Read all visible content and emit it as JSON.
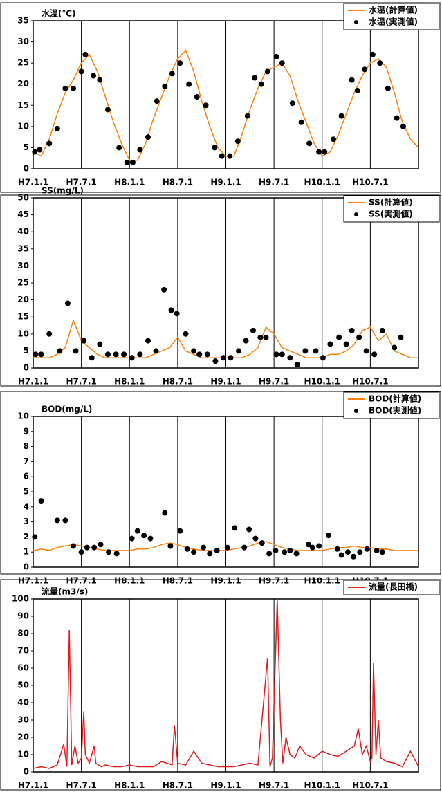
{
  "chart_data": [
    {
      "type": "line",
      "title": "水温(℃)",
      "xlim": [
        0,
        48
      ],
      "ylim": [
        0,
        35
      ],
      "yticks": [
        0,
        5,
        10,
        15,
        20,
        25,
        30,
        35
      ],
      "xticks": [
        {
          "value": 0,
          "label": "H7.1.1"
        },
        {
          "value": 6,
          "label": "H7.7.1"
        },
        {
          "value": 12,
          "label": "H8.1.1"
        },
        {
          "value": 18,
          "label": "H8.7.1"
        },
        {
          "value": 24,
          "label": "H9.1.1"
        },
        {
          "value": 30,
          "label": "H9.7.1"
        },
        {
          "value": 36,
          "label": "H10.1.1"
        },
        {
          "value": 42,
          "label": "H10.7.1"
        }
      ],
      "series": [
        {
          "name": "水温(計算値)",
          "color": "#ff7f0e",
          "style": "line",
          "x": [
            0,
            1,
            2,
            3,
            4,
            5,
            6,
            7,
            8,
            9,
            10,
            11,
            12,
            13,
            14,
            15,
            16,
            17,
            18,
            19,
            20,
            21,
            22,
            23,
            24,
            25,
            26,
            27,
            28,
            29,
            30,
            31,
            32,
            33,
            34,
            35,
            36,
            37,
            38,
            39,
            40,
            41,
            42,
            43,
            44,
            45,
            46,
            47,
            48
          ],
          "values": [
            4,
            3,
            7,
            13,
            18,
            21,
            25,
            27,
            23,
            17,
            11,
            6,
            2,
            2,
            6,
            12,
            17,
            22,
            26,
            28,
            23,
            16,
            10,
            5,
            3,
            3,
            8,
            14,
            19,
            23,
            24,
            25,
            22,
            16,
            11,
            6,
            3,
            4,
            8,
            13,
            18,
            22,
            25,
            26,
            24,
            18,
            11,
            7,
            5
          ]
        },
        {
          "name": "水温(実測値)",
          "color": "#000000",
          "style": "dots",
          "x": [
            0.2,
            0.8,
            2,
            3,
            4,
            5,
            6,
            6.5,
            7.5,
            8.3,
            9.3,
            10.7,
            11.7,
            12.4,
            13.3,
            14.3,
            15.4,
            16.4,
            17.3,
            18.3,
            19.4,
            20.4,
            21.5,
            22.6,
            23.5,
            24.5,
            25.5,
            26.7,
            27.6,
            28.4,
            29.2,
            30.3,
            31,
            32.3,
            33.4,
            34.4,
            35.6,
            36.3,
            37.4,
            38.4,
            39.7,
            40.4,
            41.3,
            42.3,
            43.2,
            44.2,
            45.3,
            46.1
          ],
          "values": [
            4,
            4.5,
            6,
            9.5,
            19,
            19,
            23,
            27,
            22,
            21,
            14,
            5,
            1.5,
            1.5,
            4.5,
            7.5,
            16,
            19.5,
            22.5,
            25,
            20,
            17,
            15,
            5,
            3,
            3,
            6.5,
            12.5,
            21.5,
            20,
            23,
            26.5,
            25,
            15.5,
            11,
            6,
            4,
            4,
            7,
            12.5,
            21,
            18.5,
            23.5,
            27,
            25,
            19,
            12,
            10
          ]
        }
      ]
    },
    {
      "type": "line",
      "title": "SS(mg/L)",
      "xlim": [
        0,
        48
      ],
      "ylim": [
        0,
        50
      ],
      "yticks": [
        0,
        5,
        10,
        15,
        20,
        25,
        30,
        35,
        40,
        45,
        50
      ],
      "xticks": [
        {
          "value": 0,
          "label": "H7.1.1"
        },
        {
          "value": 6,
          "label": "H7.7.1"
        },
        {
          "value": 12,
          "label": "H8.1.1"
        },
        {
          "value": 18,
          "label": "H8.7.1"
        },
        {
          "value": 24,
          "label": "H9.1.1"
        },
        {
          "value": 30,
          "label": "H9.7.1"
        },
        {
          "value": 36,
          "label": "H10.1.1"
        },
        {
          "value": 42,
          "label": "H10.7.1"
        }
      ],
      "series": [
        {
          "name": "SS(計算値)",
          "color": "#ff7f0e",
          "style": "line",
          "x": [
            0,
            1,
            2,
            3,
            4,
            5,
            6,
            7,
            8,
            9,
            10,
            11,
            12,
            13,
            14,
            15,
            16,
            17,
            18,
            19,
            20,
            21,
            22,
            23,
            24,
            25,
            26,
            27,
            28,
            29,
            30,
            31,
            32,
            33,
            34,
            35,
            36,
            37,
            38,
            39,
            40,
            41,
            42,
            43,
            44,
            45,
            46,
            47,
            48
          ],
          "values": [
            3,
            3,
            3,
            4,
            6,
            14,
            8,
            6,
            4,
            3,
            3,
            3,
            3,
            3,
            3,
            4,
            5,
            6,
            9,
            5,
            4,
            3,
            3,
            3,
            3,
            3,
            3,
            4,
            6,
            12,
            10,
            6,
            5,
            4,
            3,
            3,
            3,
            4,
            4,
            5,
            7,
            11,
            12,
            8,
            10,
            5,
            4,
            3,
            3
          ]
        },
        {
          "name": "SS(実測値)",
          "color": "#000000",
          "style": "dots",
          "x": [
            0.3,
            1,
            2,
            3.3,
            4.3,
            5.3,
            6.3,
            7.3,
            8.3,
            9.3,
            10.3,
            11.3,
            12.3,
            13.3,
            14.3,
            15.3,
            16.3,
            17.2,
            17.9,
            19,
            20,
            20.7,
            21.7,
            22.7,
            23.7,
            24.6,
            25.6,
            26.5,
            27.4,
            28.3,
            29,
            30.3,
            31,
            32,
            32.9,
            33.9,
            35.2,
            36.1,
            37,
            38.1,
            39,
            39.7,
            40.6,
            41.5,
            42.5,
            43.5,
            45,
            45.8
          ],
          "values": [
            4,
            4,
            10,
            5,
            19,
            5,
            8,
            3,
            7,
            4,
            4,
            4,
            3,
            4,
            8,
            5,
            23,
            17,
            16,
            10,
            5,
            4,
            4,
            2,
            3,
            3,
            5,
            8,
            11,
            9,
            9,
            4,
            4,
            3,
            1,
            5,
            5,
            3,
            7,
            9,
            7,
            11,
            9,
            5,
            4,
            11,
            6,
            9
          ]
        }
      ]
    },
    {
      "type": "line",
      "title": "BOD(mg/L)",
      "xlim": [
        0,
        48
      ],
      "ylim": [
        0,
        10
      ],
      "yticks": [
        0,
        1,
        2,
        3,
        4,
        5,
        6,
        7,
        8,
        9,
        10
      ],
      "xticks": [
        {
          "value": 0,
          "label": "H7.1.1"
        },
        {
          "value": 6,
          "label": "H7.7.1"
        },
        {
          "value": 12,
          "label": "H8.1.1"
        },
        {
          "value": 18,
          "label": "H8.7.1"
        },
        {
          "value": 24,
          "label": "H9.1.1"
        },
        {
          "value": 30,
          "label": "H9.7.1"
        },
        {
          "value": 36,
          "label": "H10.1.1"
        },
        {
          "value": 42,
          "label": "H10.7.1"
        }
      ],
      "series": [
        {
          "name": "BOD(計算値)",
          "color": "#ff7f0e",
          "style": "line",
          "x": [
            0,
            1,
            2,
            3,
            4,
            5,
            6,
            7,
            8,
            9,
            10,
            11,
            12,
            13,
            14,
            15,
            16,
            17,
            18,
            19,
            20,
            21,
            22,
            23,
            24,
            25,
            26,
            27,
            28,
            29,
            30,
            31,
            32,
            33,
            34,
            35,
            36,
            37,
            38,
            39,
            40,
            41,
            42,
            43,
            44,
            45,
            46,
            47,
            48
          ],
          "values": [
            1.1,
            1.2,
            1.1,
            1.3,
            1.4,
            1.5,
            1.4,
            1.3,
            1.2,
            1.1,
            1.1,
            1.1,
            1.1,
            1.2,
            1.2,
            1.3,
            1.5,
            1.6,
            1.5,
            1.3,
            1.2,
            1.1,
            1.1,
            1.1,
            1.1,
            1.2,
            1.3,
            1.4,
            1.6,
            1.7,
            1.5,
            1.3,
            1.2,
            1.1,
            1.1,
            1.1,
            1.1,
            1.2,
            1.3,
            1.3,
            1.4,
            1.3,
            1.3,
            1.2,
            1.2,
            1.1,
            1.1,
            1.1,
            1.1
          ]
        },
        {
          "name": "BOD(実測値)",
          "color": "#000000",
          "style": "dots",
          "x": [
            0.2,
            1,
            3,
            4,
            5,
            6,
            6.7,
            7.6,
            8.4,
            9.4,
            10.4,
            12.3,
            13,
            13.8,
            14.6,
            16.4,
            17.1,
            18.3,
            19.2,
            20,
            21.2,
            22,
            22.9,
            24.2,
            25.1,
            26.3,
            26.9,
            27.7,
            28.5,
            29.4,
            30.2,
            31.3,
            32,
            32.8,
            34.3,
            34.8,
            35.6,
            36.8,
            37.9,
            38.4,
            39.2,
            39.9,
            40.7,
            41.6,
            42.8,
            43.5
          ],
          "values": [
            2,
            4.4,
            3.1,
            3.1,
            1.4,
            1,
            1.3,
            1.3,
            1.5,
            1,
            0.9,
            1.9,
            2.4,
            2.1,
            1.9,
            3.6,
            1.4,
            2.4,
            1.2,
            1,
            1.3,
            0.9,
            1.1,
            1.3,
            2.6,
            1.3,
            2.5,
            1.9,
            1.6,
            0.9,
            1.1,
            1,
            1.1,
            0.9,
            1.5,
            1.3,
            1.4,
            2.1,
            1.2,
            0.8,
            1,
            0.7,
            1,
            1.2,
            1.1,
            1
          ]
        }
      ]
    },
    {
      "type": "line",
      "title": "流量(m3/s)",
      "xlim": [
        0,
        48
      ],
      "ylim": [
        0,
        100
      ],
      "yticks": [
        0,
        10,
        20,
        30,
        40,
        50,
        60,
        70,
        80,
        90,
        100
      ],
      "xticks": [
        {
          "value": 0,
          "label": "H7.1.1"
        },
        {
          "value": 6,
          "label": "H7.7.1"
        },
        {
          "value": 12,
          "label": "H8.1.1"
        },
        {
          "value": 18,
          "label": "H8.7.1"
        },
        {
          "value": 24,
          "label": "H9.1.1"
        },
        {
          "value": 30,
          "label": "H9.7.1"
        },
        {
          "value": 36,
          "label": "H10.1.1"
        },
        {
          "value": 42,
          "label": "H10.7.1"
        }
      ],
      "series": [
        {
          "name": "流量(長田橋)",
          "color": "#e41a1c",
          "style": "line",
          "x": [
            0,
            1,
            2,
            3,
            3.8,
            4.2,
            4.5,
            4.8,
            5.2,
            5.6,
            6,
            6.3,
            6.5,
            7,
            7.6,
            7.8,
            8.5,
            9,
            10,
            11,
            12,
            13,
            14,
            15,
            16,
            17.3,
            17.6,
            18,
            19,
            20,
            21,
            22,
            23,
            24,
            25,
            26,
            27,
            28,
            29.2,
            29.5,
            29.8,
            30.4,
            30.8,
            31.1,
            31.5,
            32,
            32.6,
            33.2,
            34,
            35,
            36,
            37,
            38,
            39,
            40,
            40.5,
            41,
            41.5,
            42,
            42.2,
            42.4,
            42.7,
            43,
            43.3,
            44,
            45,
            46,
            47,
            48
          ],
          "values": [
            2,
            3,
            2,
            4,
            16,
            3,
            82,
            4,
            15,
            5,
            8,
            35,
            10,
            5,
            15,
            5,
            3,
            4,
            3,
            3,
            4,
            3,
            3,
            3,
            6,
            4,
            27,
            5,
            4,
            12,
            5,
            4,
            3,
            3,
            3,
            4,
            5,
            4,
            66,
            3,
            8,
            100,
            30,
            5,
            20,
            10,
            8,
            15,
            10,
            8,
            12,
            10,
            9,
            12,
            15,
            25,
            10,
            15,
            6,
            8,
            63,
            10,
            30,
            8,
            6,
            5,
            3,
            12,
            3
          ]
        }
      ]
    }
  ]
}
